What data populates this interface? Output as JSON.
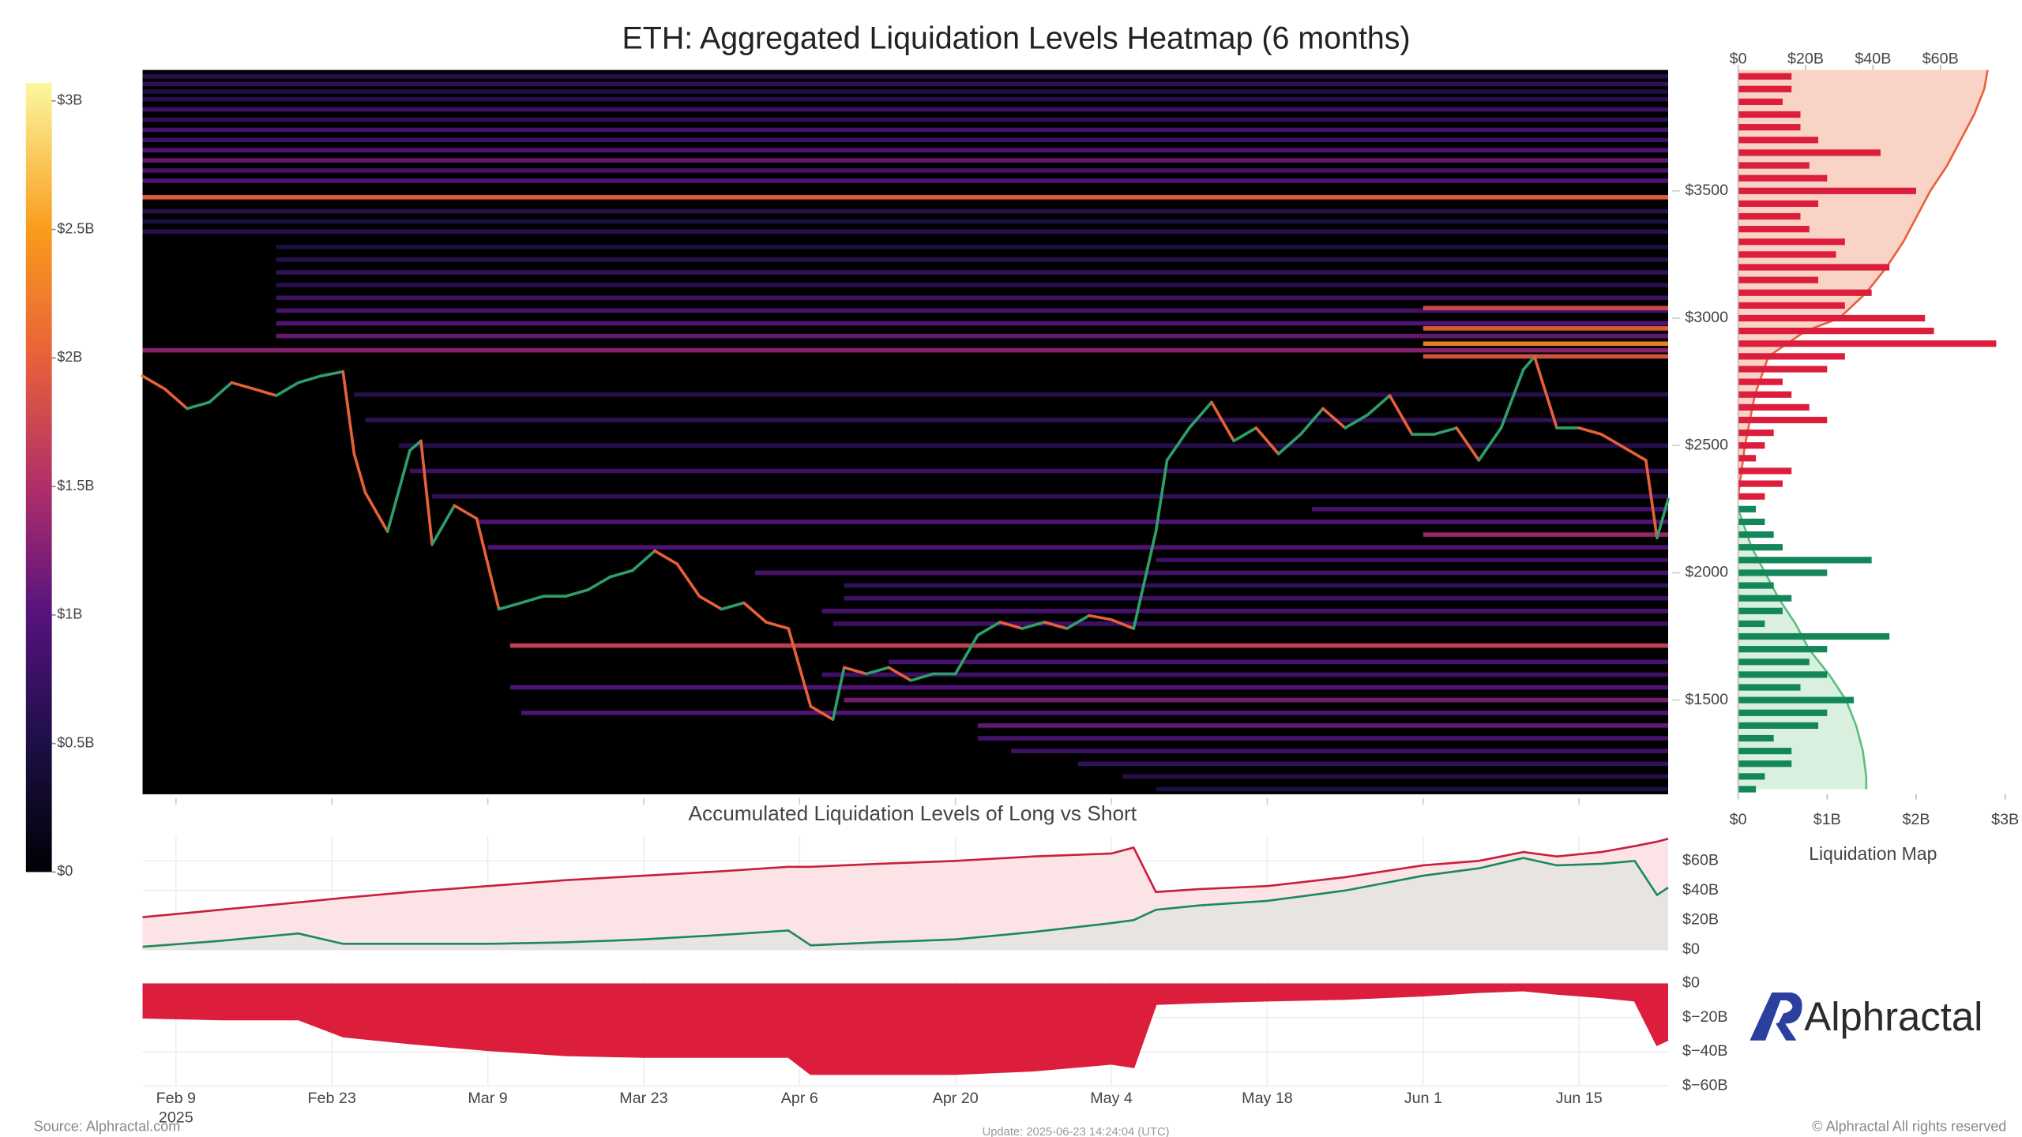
{
  "chart_data": [
    {
      "type": "heatmap",
      "title": "ETH: Aggregated Liquidation Levels Heatmap (6 months)",
      "xlim": [
        "2025-02-06",
        "2025-06-23"
      ],
      "xticks": [
        {
          "value": "2025-02-09",
          "label": "Feb 9"
        },
        {
          "value": "2025-02-23",
          "label": "Feb 23"
        },
        {
          "value": "2025-03-09",
          "label": "Mar 9"
        },
        {
          "value": "2025-03-23",
          "label": "Mar 23"
        },
        {
          "value": "2025-04-06",
          "label": "Apr 6"
        },
        {
          "value": "2025-04-20",
          "label": "Apr 20"
        },
        {
          "value": "2025-05-04",
          "label": "May 4"
        },
        {
          "value": "2025-05-18",
          "label": "May 18"
        },
        {
          "value": "2025-06-01",
          "label": "Jun 1"
        },
        {
          "value": "2025-06-15",
          "label": "Jun 15"
        }
      ],
      "x_year_label": "2025",
      "ylim": [
        1130,
        3975
      ],
      "yticks": [
        {
          "value": 1500,
          "label": "$1500"
        },
        {
          "value": 2000,
          "label": "$2000"
        },
        {
          "value": 2500,
          "label": "$2500"
        },
        {
          "value": 3000,
          "label": "$3000"
        },
        {
          "value": 3500,
          "label": "$3500"
        }
      ],
      "colorbar": {
        "lim": [
          0,
          3.07
        ],
        "ticks": [
          {
            "value": 0,
            "label": "$0"
          },
          {
            "value": 0.5,
            "label": "$0.5B"
          },
          {
            "value": 1,
            "label": "$1B"
          },
          {
            "value": 1.5,
            "label": "$1.5B"
          },
          {
            "value": 2,
            "label": "$2B"
          },
          {
            "value": 2.5,
            "label": "$2.5B"
          },
          {
            "value": 3,
            "label": "$3B"
          }
        ],
        "colorscale": [
          [
            0,
            "#000004"
          ],
          [
            0.5,
            "#1d0f45"
          ],
          [
            1,
            "#55137d"
          ],
          [
            1.5,
            "#b02f6a"
          ],
          [
            2,
            "#e8603a"
          ],
          [
            2.5,
            "#f99c1c"
          ],
          [
            3.07,
            "#fbf8a0"
          ]
        ]
      },
      "background": "#000000",
      "bands": [
        {
          "price": 3950,
          "start": "2025-02-06",
          "value": 0.6
        },
        {
          "price": 3920,
          "start": "2025-02-06",
          "value": 0.7
        },
        {
          "price": 3890,
          "start": "2025-02-06",
          "value": 0.5
        },
        {
          "price": 3860,
          "start": "2025-02-06",
          "value": 0.6
        },
        {
          "price": 3820,
          "start": "2025-02-06",
          "value": 0.8
        },
        {
          "price": 3780,
          "start": "2025-02-06",
          "value": 0.7
        },
        {
          "price": 3740,
          "start": "2025-02-06",
          "value": 0.9
        },
        {
          "price": 3700,
          "start": "2025-02-06",
          "value": 0.8
        },
        {
          "price": 3660,
          "start": "2025-02-06",
          "value": 1.0
        },
        {
          "price": 3620,
          "start": "2025-02-06",
          "value": 1.1
        },
        {
          "price": 3580,
          "start": "2025-02-06",
          "value": 0.9
        },
        {
          "price": 3540,
          "start": "2025-02-06",
          "value": 1.0
        },
        {
          "price": 3475,
          "start": "2025-02-06",
          "value": 2.0
        },
        {
          "price": 3420,
          "start": "2025-02-06",
          "value": 0.6
        },
        {
          "price": 3380,
          "start": "2025-02-06",
          "value": 0.5
        },
        {
          "price": 3340,
          "start": "2025-02-06",
          "value": 0.6
        },
        {
          "price": 3280,
          "start": "2025-02-18",
          "value": 0.5
        },
        {
          "price": 3230,
          "start": "2025-02-18",
          "value": 0.6
        },
        {
          "price": 3180,
          "start": "2025-02-18",
          "value": 0.7
        },
        {
          "price": 3130,
          "start": "2025-02-18",
          "value": 0.6
        },
        {
          "price": 3080,
          "start": "2025-02-18",
          "value": 0.8
        },
        {
          "price": 3030,
          "start": "2025-02-18",
          "value": 0.9
        },
        {
          "price": 2980,
          "start": "2025-02-18",
          "value": 1.0
        },
        {
          "price": 2930,
          "start": "2025-02-18",
          "value": 1.1
        },
        {
          "price": 2874,
          "start": "2025-02-06",
          "value": 1.3
        },
        {
          "price": 3040,
          "start": "2025-06-01",
          "value": 1.8
        },
        {
          "price": 2960,
          "start": "2025-06-01",
          "value": 2.0
        },
        {
          "price": 2900,
          "start": "2025-06-01",
          "value": 2.3
        },
        {
          "price": 2850,
          "start": "2025-06-01",
          "value": 1.9
        },
        {
          "price": 2700,
          "start": "2025-02-25",
          "value": 0.6
        },
        {
          "price": 2600,
          "start": "2025-02-26",
          "value": 0.7
        },
        {
          "price": 2500,
          "start": "2025-03-01",
          "value": 0.6
        },
        {
          "price": 2400,
          "start": "2025-03-02",
          "value": 0.8
        },
        {
          "price": 2300,
          "start": "2025-03-04",
          "value": 0.7
        },
        {
          "price": 2250,
          "start": "2025-05-22",
          "value": 0.9
        },
        {
          "price": 2200,
          "start": "2025-03-08",
          "value": 1.0
        },
        {
          "price": 2150,
          "start": "2025-06-01",
          "value": 1.4
        },
        {
          "price": 2100,
          "start": "2025-03-09",
          "value": 1.0
        },
        {
          "price": 2050,
          "start": "2025-05-08",
          "value": 0.8
        },
        {
          "price": 2000,
          "start": "2025-04-02",
          "value": 0.9
        },
        {
          "price": 1950,
          "start": "2025-04-10",
          "value": 0.7
        },
        {
          "price": 1900,
          "start": "2025-04-10",
          "value": 0.8
        },
        {
          "price": 1850,
          "start": "2025-04-08",
          "value": 0.9
        },
        {
          "price": 1800,
          "start": "2025-04-09",
          "value": 0.8
        },
        {
          "price": 1714,
          "start": "2025-03-11",
          "value": 1.7
        },
        {
          "price": 1650,
          "start": "2025-04-14",
          "value": 0.9
        },
        {
          "price": 1600,
          "start": "2025-04-08",
          "value": 0.8
        },
        {
          "price": 1550,
          "start": "2025-03-11",
          "value": 1.0
        },
        {
          "price": 1500,
          "start": "2025-04-10",
          "value": 1.2
        },
        {
          "price": 1450,
          "start": "2025-03-12",
          "value": 1.0
        },
        {
          "price": 1400,
          "start": "2025-04-22",
          "value": 1.1
        },
        {
          "price": 1350,
          "start": "2025-04-22",
          "value": 0.9
        },
        {
          "price": 1300,
          "start": "2025-04-25",
          "value": 0.8
        },
        {
          "price": 1250,
          "start": "2025-05-01",
          "value": 0.7
        },
        {
          "price": 1200,
          "start": "2025-05-05",
          "value": 0.6
        },
        {
          "price": 1150,
          "start": "2025-05-08",
          "value": 0.5
        }
      ],
      "price": {
        "up_color": "#2e9e6a",
        "down_color": "#e8603a",
        "x": [
          "2025-02-06",
          "2025-02-08",
          "2025-02-10",
          "2025-02-12",
          "2025-02-14",
          "2025-02-16",
          "2025-02-18",
          "2025-02-20",
          "2025-02-22",
          "2025-02-24",
          "2025-02-25",
          "2025-02-26",
          "2025-02-28",
          "2025-03-02",
          "2025-03-03",
          "2025-03-04",
          "2025-03-06",
          "2025-03-08",
          "2025-03-10",
          "2025-03-12",
          "2025-03-14",
          "2025-03-16",
          "2025-03-18",
          "2025-03-20",
          "2025-03-22",
          "2025-03-24",
          "2025-03-26",
          "2025-03-28",
          "2025-03-30",
          "2025-04-01",
          "2025-04-03",
          "2025-04-05",
          "2025-04-07",
          "2025-04-09",
          "2025-04-10",
          "2025-04-12",
          "2025-04-14",
          "2025-04-16",
          "2025-04-18",
          "2025-04-20",
          "2025-04-22",
          "2025-04-24",
          "2025-04-26",
          "2025-04-28",
          "2025-04-30",
          "2025-05-02",
          "2025-05-04",
          "2025-05-06",
          "2025-05-08",
          "2025-05-09",
          "2025-05-11",
          "2025-05-13",
          "2025-05-15",
          "2025-05-17",
          "2025-05-19",
          "2025-05-21",
          "2025-05-23",
          "2025-05-25",
          "2025-05-27",
          "2025-05-29",
          "2025-05-31",
          "2025-06-02",
          "2025-06-04",
          "2025-06-06",
          "2025-06-08",
          "2025-06-10",
          "2025-06-11",
          "2025-06-13",
          "2025-06-15",
          "2025-06-17",
          "2025-06-19",
          "2025-06-21",
          "2025-06-22",
          "2025-06-23"
        ],
        "values": [
          2773,
          2722,
          2645,
          2670,
          2747,
          2722,
          2696,
          2747,
          2773,
          2790,
          2467,
          2315,
          2162,
          2480,
          2518,
          2111,
          2264,
          2213,
          1857,
          1882,
          1908,
          1908,
          1933,
          1984,
          2009,
          2086,
          2035,
          1908,
          1857,
          1882,
          1806,
          1781,
          1475,
          1424,
          1628,
          1603,
          1628,
          1577,
          1603,
          1603,
          1755,
          1806,
          1781,
          1806,
          1781,
          1832,
          1816,
          1781,
          2162,
          2442,
          2569,
          2670,
          2518,
          2569,
          2467,
          2544,
          2645,
          2569,
          2620,
          2696,
          2544,
          2544,
          2569,
          2442,
          2569,
          2798,
          2849,
          2569,
          2569,
          2544,
          2493,
          2442,
          2137,
          2289
        ]
      }
    },
    {
      "type": "hbar",
      "title": "Liquidation Map",
      "ylim": [
        1130,
        3975
      ],
      "xlim": [
        0,
        3.0
      ],
      "xticks": [
        {
          "value": 0,
          "label": "$0"
        },
        {
          "value": 1,
          "label": "$1B"
        },
        {
          "value": 2,
          "label": "$2B"
        },
        {
          "value": 3,
          "label": "$3B"
        }
      ],
      "x2lim": [
        0,
        79.2
      ],
      "x2ticks": [
        {
          "value": 0,
          "label": "$0"
        },
        {
          "value": 20,
          "label": "$20B"
        },
        {
          "value": 40,
          "label": "$40B"
        },
        {
          "value": 60,
          "label": "$60B"
        }
      ],
      "bars": [
        {
          "color": "#dc1e3c",
          "prices": [
            2300,
            2350,
            2400,
            2450,
            2500,
            2550,
            2600,
            2650,
            2700,
            2750,
            2800,
            2850,
            2900,
            2950,
            3000,
            3050,
            3100,
            3150,
            3200,
            3250,
            3300,
            3350,
            3400,
            3450,
            3500,
            3550,
            3600,
            3650,
            3700,
            3750,
            3800,
            3850,
            3900,
            3950
          ],
          "values": [
            0.3,
            0.5,
            0.6,
            0.2,
            0.3,
            0.4,
            1.0,
            0.8,
            0.6,
            0.5,
            1.0,
            1.2,
            2.9,
            2.2,
            2.1,
            1.2,
            1.5,
            0.9,
            1.7,
            1.1,
            1.2,
            0.8,
            0.7,
            0.9,
            2.0,
            1.0,
            0.8,
            1.6,
            0.9,
            0.7,
            0.7,
            0.5,
            0.6,
            0.6
          ]
        },
        {
          "color": "#14875a",
          "prices": [
            1150,
            1200,
            1250,
            1300,
            1350,
            1400,
            1450,
            1500,
            1550,
            1600,
            1650,
            1700,
            1750,
            1800,
            1850,
            1900,
            1950,
            2000,
            2050,
            2100,
            2150,
            2200,
            2250
          ],
          "values": [
            0.2,
            0.3,
            0.6,
            0.6,
            0.4,
            0.9,
            1.0,
            1.3,
            0.7,
            1.0,
            0.8,
            1.0,
            1.7,
            0.3,
            0.5,
            0.6,
            0.4,
            1.0,
            1.5,
            0.5,
            0.4,
            0.3,
            0.2
          ]
        }
      ],
      "cumulative": [
        {
          "color": "#e8603a",
          "fill": "#f8d3c6",
          "prices": [
            2300,
            2500,
            2700,
            2850,
            2950,
            3000,
            3100,
            3200,
            3300,
            3400,
            3500,
            3600,
            3700,
            3800,
            3900,
            3975
          ],
          "values": [
            0,
            2,
            5,
            9,
            20,
            30,
            38,
            44,
            49,
            53,
            57,
            62,
            66,
            70,
            73,
            74
          ]
        },
        {
          "color": "#5cbf7e",
          "fill": "#d8f0dd",
          "prices": [
            2250,
            2100,
            2000,
            1900,
            1800,
            1700,
            1600,
            1500,
            1400,
            1300,
            1200,
            1150
          ],
          "values": [
            0,
            4,
            8,
            12,
            17,
            21,
            27,
            32,
            35,
            37,
            38,
            38
          ]
        }
      ]
    },
    {
      "type": "area",
      "title": "Accumulated Liquidation Levels of Long vs Short",
      "ylim": [
        0,
        77
      ],
      "yticks": [
        {
          "value": 0,
          "label": "$0"
        },
        {
          "value": 20,
          "label": "$20B"
        },
        {
          "value": 40,
          "label": "$40B"
        },
        {
          "value": 60,
          "label": "$60B"
        }
      ],
      "x": [
        "2025-02-06",
        "2025-02-13",
        "2025-02-20",
        "2025-02-24",
        "2025-03-02",
        "2025-03-09",
        "2025-03-16",
        "2025-03-23",
        "2025-03-30",
        "2025-04-05",
        "2025-04-07",
        "2025-04-13",
        "2025-04-20",
        "2025-04-27",
        "2025-05-04",
        "2025-05-06",
        "2025-05-08",
        "2025-05-12",
        "2025-05-18",
        "2025-05-25",
        "2025-06-01",
        "2025-06-06",
        "2025-06-10",
        "2025-06-13",
        "2025-06-17",
        "2025-06-20",
        "2025-06-22",
        "2025-06-23"
      ],
      "series": [
        {
          "color": "#c8203c",
          "fill": "#fbe3e6",
          "values": [
            22,
            27,
            32,
            35,
            39,
            43,
            47,
            50,
            53,
            56,
            56,
            58,
            60,
            63,
            65,
            69,
            39,
            41,
            43,
            49,
            57,
            60,
            66,
            63,
            66,
            70,
            73,
            75
          ]
        },
        {
          "color": "#1a8a5c",
          "fill": "#e4e4e0",
          "values": [
            2,
            6,
            11,
            4,
            4,
            4,
            5,
            7,
            10,
            13,
            3,
            5,
            7,
            12,
            18,
            20,
            27,
            30,
            33,
            40,
            50,
            55,
            62,
            57,
            58,
            60,
            37,
            42
          ]
        }
      ]
    },
    {
      "type": "area",
      "ylim": [
        -60,
        1.5
      ],
      "yticks": [
        {
          "value": 0,
          "label": "$0"
        },
        {
          "value": -20,
          "label": "$−20B"
        },
        {
          "value": -40,
          "label": "$−40B"
        },
        {
          "value": -60,
          "label": "$−60B"
        }
      ],
      "x": [
        "2025-02-06",
        "2025-02-13",
        "2025-02-20",
        "2025-02-24",
        "2025-03-02",
        "2025-03-09",
        "2025-03-16",
        "2025-03-23",
        "2025-03-30",
        "2025-04-05",
        "2025-04-07",
        "2025-04-13",
        "2025-04-20",
        "2025-04-27",
        "2025-05-04",
        "2025-05-06",
        "2025-05-08",
        "2025-05-12",
        "2025-05-18",
        "2025-05-25",
        "2025-06-01",
        "2025-06-06",
        "2025-06-10",
        "2025-06-13",
        "2025-06-17",
        "2025-06-20",
        "2025-06-22",
        "2025-06-23"
      ],
      "series": [
        {
          "color": "#dc1e3c",
          "fill": "#dc1e3c",
          "values": [
            -20,
            -21,
            -21,
            -31,
            -35,
            -39,
            -42,
            -43,
            -43,
            -43,
            -53,
            -53,
            -53,
            -51,
            -47,
            -49,
            -12,
            -11,
            -10,
            -9,
            -7,
            -5,
            -4,
            -6,
            -8,
            -10,
            -36,
            -33
          ]
        }
      ]
    }
  ],
  "logo_text": "Alphractal",
  "footer": {
    "source": "Source: Alphractal.com",
    "update": "Update: 2025-06-23 14:24:04 (UTC)",
    "copyright": "© Alphractal All rights reserved"
  }
}
